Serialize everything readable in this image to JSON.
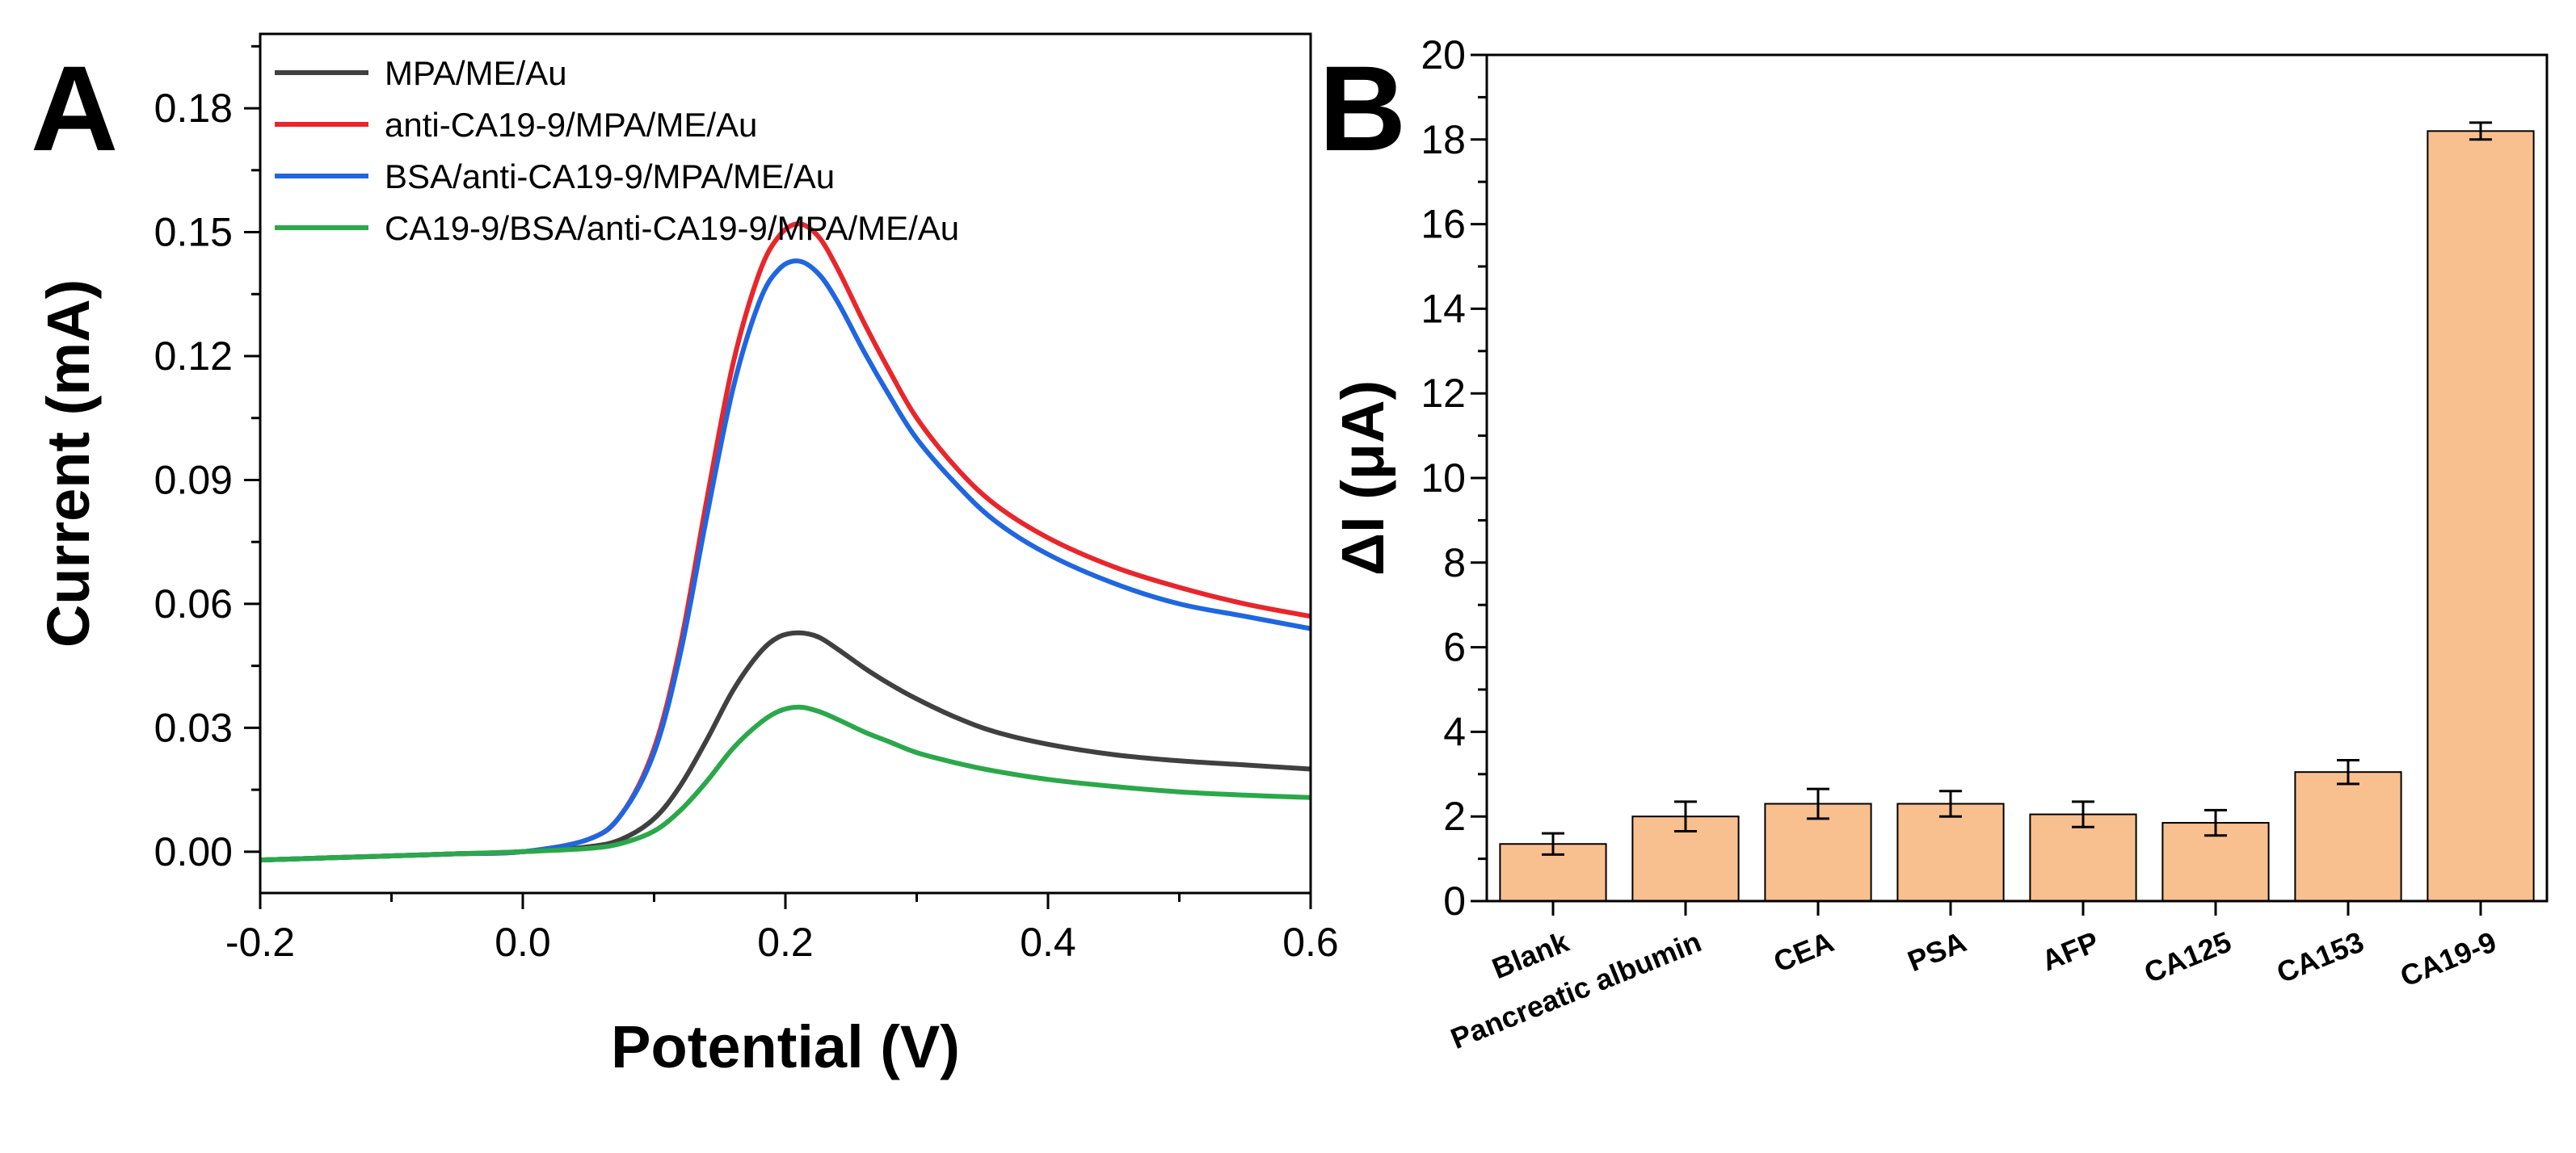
{
  "chart_data": [
    {
      "panel": "A",
      "type": "line",
      "xlabel": "Potential (V)",
      "ylabel": "Current (mA)",
      "xlim": [
        -0.2,
        0.6
      ],
      "ylim": [
        -0.01,
        0.198
      ],
      "xticks": [
        "-0.2",
        "0.0",
        "0.2",
        "0.4",
        "0.6"
      ],
      "yticks": [
        "0.00",
        "0.03",
        "0.06",
        "0.09",
        "0.12",
        "0.15",
        "0.18"
      ],
      "legend_position": "top-left",
      "series": [
        {
          "name": "MPA/ME/Au",
          "color": "#404040",
          "x": [
            -0.2,
            -0.15,
            -0.1,
            -0.05,
            0.0,
            0.05,
            0.075,
            0.1,
            0.12,
            0.14,
            0.16,
            0.18,
            0.195,
            0.21,
            0.225,
            0.24,
            0.26,
            0.28,
            0.3,
            0.33,
            0.36,
            0.4,
            0.45,
            0.5,
            0.55,
            0.6
          ],
          "y": [
            -0.002,
            -0.0015,
            -0.001,
            -0.0005,
            0.0,
            0.0012,
            0.003,
            0.008,
            0.016,
            0.027,
            0.039,
            0.048,
            0.052,
            0.053,
            0.052,
            0.049,
            0.0445,
            0.0405,
            0.037,
            0.0325,
            0.029,
            0.026,
            0.0235,
            0.022,
            0.021,
            0.02
          ]
        },
        {
          "name": "anti-CA19-9/MPA/ME/Au",
          "color": "#e8262b",
          "x": [
            -0.2,
            -0.15,
            -0.1,
            -0.05,
            0.0,
            0.05,
            0.075,
            0.1,
            0.12,
            0.14,
            0.16,
            0.18,
            0.195,
            0.21,
            0.225,
            0.24,
            0.26,
            0.28,
            0.3,
            0.33,
            0.36,
            0.4,
            0.45,
            0.5,
            0.55,
            0.6
          ],
          "y": [
            -0.002,
            -0.0015,
            -0.001,
            -0.0005,
            0.0,
            0.003,
            0.009,
            0.025,
            0.05,
            0.085,
            0.118,
            0.14,
            0.149,
            0.152,
            0.149,
            0.141,
            0.128,
            0.116,
            0.105,
            0.093,
            0.084,
            0.076,
            0.069,
            0.064,
            0.06,
            0.057
          ]
        },
        {
          "name": "BSA/anti-CA19-9/MPA/ME/Au",
          "color": "#1f66e0",
          "x": [
            -0.2,
            -0.15,
            -0.1,
            -0.05,
            0.0,
            0.05,
            0.075,
            0.1,
            0.12,
            0.14,
            0.16,
            0.18,
            0.195,
            0.21,
            0.225,
            0.24,
            0.26,
            0.28,
            0.3,
            0.33,
            0.36,
            0.4,
            0.45,
            0.5,
            0.55,
            0.6
          ],
          "y": [
            -0.002,
            -0.0015,
            -0.001,
            -0.0005,
            0.0,
            0.003,
            0.009,
            0.024,
            0.048,
            0.081,
            0.112,
            0.133,
            0.141,
            0.143,
            0.14,
            0.133,
            0.121,
            0.11,
            0.1,
            0.089,
            0.08,
            0.072,
            0.065,
            0.06,
            0.057,
            0.054
          ]
        },
        {
          "name": "CA19-9/BSA/anti-CA19-9/MPA/ME/Au",
          "color": "#2aa84a",
          "x": [
            -0.2,
            -0.15,
            -0.1,
            -0.05,
            0.0,
            0.05,
            0.075,
            0.1,
            0.12,
            0.14,
            0.16,
            0.18,
            0.195,
            0.21,
            0.225,
            0.24,
            0.26,
            0.28,
            0.3,
            0.33,
            0.36,
            0.4,
            0.45,
            0.5,
            0.55,
            0.6
          ],
          "y": [
            -0.002,
            -0.0015,
            -0.001,
            -0.0005,
            0.0,
            0.0008,
            0.002,
            0.005,
            0.01,
            0.017,
            0.025,
            0.031,
            0.034,
            0.035,
            0.034,
            0.032,
            0.029,
            0.0265,
            0.024,
            0.0215,
            0.0195,
            0.0175,
            0.0158,
            0.0145,
            0.0137,
            0.0131
          ]
        }
      ]
    },
    {
      "panel": "B",
      "type": "bar",
      "xlabel": "",
      "ylabel": "ΔI (μA)",
      "ylim": [
        0,
        20
      ],
      "yticks": [
        "0",
        "2",
        "4",
        "6",
        "8",
        "10",
        "12",
        "14",
        "16",
        "18",
        "20"
      ],
      "bar_color": "#f9c08f",
      "categories": [
        "Blank",
        "Pancreatic albumin",
        "CEA",
        "PSA",
        "AFP",
        "CA125",
        "CA153",
        "CA19-9"
      ],
      "values": [
        1.35,
        2.0,
        2.3,
        2.3,
        2.05,
        1.85,
        3.05,
        18.2
      ],
      "errors": [
        0.25,
        0.35,
        0.35,
        0.3,
        0.3,
        0.3,
        0.28,
        0.2
      ]
    }
  ]
}
